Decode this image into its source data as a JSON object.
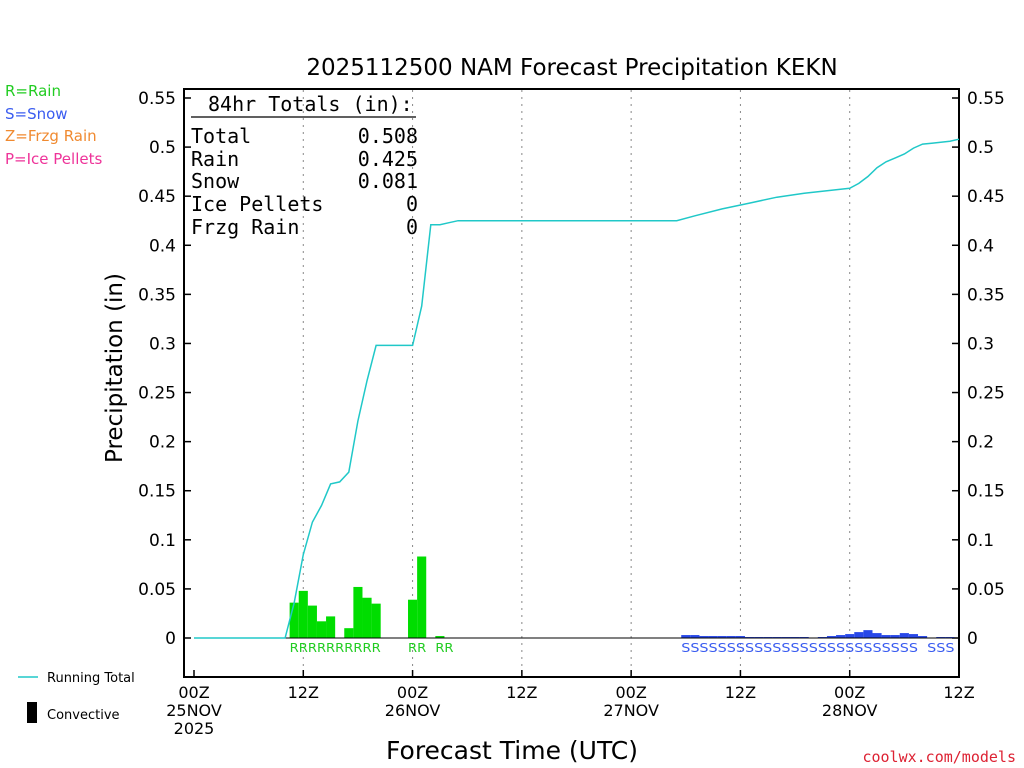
{
  "chart_data": {
    "type": "bar",
    "title": "2025112500 NAM Forecast Precipitation KEKN",
    "ylabel": "Precipitation (in)",
    "xlabel": "Forecast Time (UTC)",
    "credit": "coolwx.com/models",
    "ylim": [
      -0.04,
      0.56
    ],
    "xlim_hours": [
      0,
      84
    ],
    "y_ticks": [
      0,
      0.05,
      0.1,
      0.15,
      0.2,
      0.25,
      0.3,
      0.35,
      0.4,
      0.45,
      0.5,
      0.55
    ],
    "y_tick_labels": [
      "0",
      "0.05",
      "0.1",
      "0.15",
      "0.2",
      "0.25",
      "0.3",
      "0.35",
      "0.4",
      "0.45",
      "0.5",
      "0.55"
    ],
    "x_ticks": [
      {
        "hour": 0,
        "lines": [
          "00Z",
          "25NOV",
          "2025"
        ]
      },
      {
        "hour": 12,
        "lines": [
          "12Z"
        ]
      },
      {
        "hour": 24,
        "lines": [
          "00Z",
          "26NOV"
        ]
      },
      {
        "hour": 36,
        "lines": [
          "12Z"
        ]
      },
      {
        "hour": 48,
        "lines": [
          "00Z",
          "27NOV"
        ]
      },
      {
        "hour": 60,
        "lines": [
          "12Z"
        ]
      },
      {
        "hour": 72,
        "lines": [
          "00Z",
          "28NOV"
        ]
      },
      {
        "hour": 84,
        "lines": [
          "12Z"
        ]
      }
    ],
    "grid_hours": [
      12,
      24,
      36,
      48,
      60,
      72
    ],
    "legend_types": [
      {
        "label": "R=Rain",
        "color": "#22cc22"
      },
      {
        "label": "S=Snow",
        "color": "#3a5cf0"
      },
      {
        "label": "Z=Frzg Rain",
        "color": "#f08a30"
      },
      {
        "label": "P=Ice Pellets",
        "color": "#ee3399"
      }
    ],
    "legend_series": [
      {
        "label": "Running Total",
        "kind": "line",
        "color": "#20c8c8"
      },
      {
        "label": "Convective",
        "kind": "bar",
        "color": "#000000"
      }
    ],
    "totals": {
      "heading": "84hr Totals (in):",
      "rows": [
        {
          "label": "Total",
          "value": "0.508"
        },
        {
          "label": "Rain",
          "value": "0.425"
        },
        {
          "label": "Snow",
          "value": "0.081"
        },
        {
          "label": "Ice Pellets",
          "value": "0"
        },
        {
          "label": "Frzg Rain",
          "value": "0"
        }
      ]
    },
    "bars": [
      {
        "hour": 11,
        "value": 0.036,
        "type": "rain"
      },
      {
        "hour": 12,
        "value": 0.048,
        "type": "rain"
      },
      {
        "hour": 13,
        "value": 0.033,
        "type": "rain"
      },
      {
        "hour": 14,
        "value": 0.017,
        "type": "rain"
      },
      {
        "hour": 15,
        "value": 0.022,
        "type": "rain"
      },
      {
        "hour": 17,
        "value": 0.01,
        "type": "rain"
      },
      {
        "hour": 18,
        "value": 0.052,
        "type": "rain"
      },
      {
        "hour": 19,
        "value": 0.041,
        "type": "rain"
      },
      {
        "hour": 20,
        "value": 0.035,
        "type": "rain"
      },
      {
        "hour": 24,
        "value": 0.039,
        "type": "rain"
      },
      {
        "hour": 25,
        "value": 0.083,
        "type": "rain"
      },
      {
        "hour": 27,
        "value": 0.002,
        "type": "rain"
      },
      {
        "hour": 54,
        "value": 0.003,
        "type": "snow"
      },
      {
        "hour": 55,
        "value": 0.003,
        "type": "snow"
      },
      {
        "hour": 56,
        "value": 0.002,
        "type": "snow"
      },
      {
        "hour": 57,
        "value": 0.002,
        "type": "snow"
      },
      {
        "hour": 58,
        "value": 0.002,
        "type": "snow"
      },
      {
        "hour": 59,
        "value": 0.002,
        "type": "snow"
      },
      {
        "hour": 60,
        "value": 0.002,
        "type": "snow"
      },
      {
        "hour": 61,
        "value": 0.001,
        "type": "snow"
      },
      {
        "hour": 62,
        "value": 0.001,
        "type": "snow"
      },
      {
        "hour": 63,
        "value": 0.001,
        "type": "snow"
      },
      {
        "hour": 64,
        "value": 0.001,
        "type": "snow"
      },
      {
        "hour": 65,
        "value": 0.001,
        "type": "snow"
      },
      {
        "hour": 66,
        "value": 0.001,
        "type": "snow"
      },
      {
        "hour": 67,
        "value": 0.001,
        "type": "snow"
      },
      {
        "hour": 69,
        "value": 0.001,
        "type": "snow"
      },
      {
        "hour": 70,
        "value": 0.002,
        "type": "snow"
      },
      {
        "hour": 71,
        "value": 0.003,
        "type": "snow"
      },
      {
        "hour": 72,
        "value": 0.004,
        "type": "snow"
      },
      {
        "hour": 73,
        "value": 0.006,
        "type": "snow"
      },
      {
        "hour": 74,
        "value": 0.008,
        "type": "snow"
      },
      {
        "hour": 75,
        "value": 0.005,
        "type": "snow"
      },
      {
        "hour": 76,
        "value": 0.003,
        "type": "snow"
      },
      {
        "hour": 77,
        "value": 0.003,
        "type": "snow"
      },
      {
        "hour": 78,
        "value": 0.005,
        "type": "snow"
      },
      {
        "hour": 79,
        "value": 0.004,
        "type": "snow"
      },
      {
        "hour": 80,
        "value": 0.002,
        "type": "snow"
      },
      {
        "hour": 82,
        "value": 0.001,
        "type": "snow"
      },
      {
        "hour": 83,
        "value": 0.001,
        "type": "snow"
      }
    ],
    "running_total": {
      "hours": [
        0,
        10,
        11,
        12,
        13,
        14,
        15,
        16,
        17,
        18,
        19,
        20,
        21,
        22,
        23,
        24,
        25,
        26,
        27,
        28,
        29,
        30,
        35,
        40,
        45,
        50,
        53,
        55,
        58,
        61,
        64,
        67,
        70,
        71,
        72,
        73,
        74,
        75,
        76,
        77,
        78,
        79,
        80,
        81,
        82,
        83,
        84
      ],
      "values": [
        0,
        0,
        0.036,
        0.085,
        0.118,
        0.135,
        0.157,
        0.159,
        0.169,
        0.221,
        0.262,
        0.298,
        0.298,
        0.298,
        0.298,
        0.298,
        0.338,
        0.421,
        0.421,
        0.423,
        0.425,
        0.425,
        0.425,
        0.425,
        0.425,
        0.425,
        0.425,
        0.43,
        0.437,
        0.443,
        0.449,
        0.453,
        0.456,
        0.457,
        0.458,
        0.463,
        0.47,
        0.479,
        0.485,
        0.489,
        0.493,
        0.499,
        0.503,
        0.504,
        0.505,
        0.506,
        0.508
      ]
    },
    "type_labels": [
      {
        "text": "RRRRRRRRRR",
        "start_hour": 11,
        "type": "rain"
      },
      {
        "text": "RR",
        "start_hour": 24,
        "type": "rain"
      },
      {
        "text": "RR",
        "start_hour": 27,
        "type": "rain"
      },
      {
        "text": "SSSSSSSSSSSSSSSSSSSSSSSSSS",
        "start_hour": 54,
        "type": "snow"
      },
      {
        "text": "SSS",
        "start_hour": 81,
        "type": "snow"
      }
    ],
    "colors": {
      "rain": "#00dd00",
      "snow": "#2848e8",
      "running_total": "#20c8c8",
      "rain_label": "#22cc22",
      "snow_label": "#3a5cf0",
      "credit": "#dd2233"
    }
  }
}
